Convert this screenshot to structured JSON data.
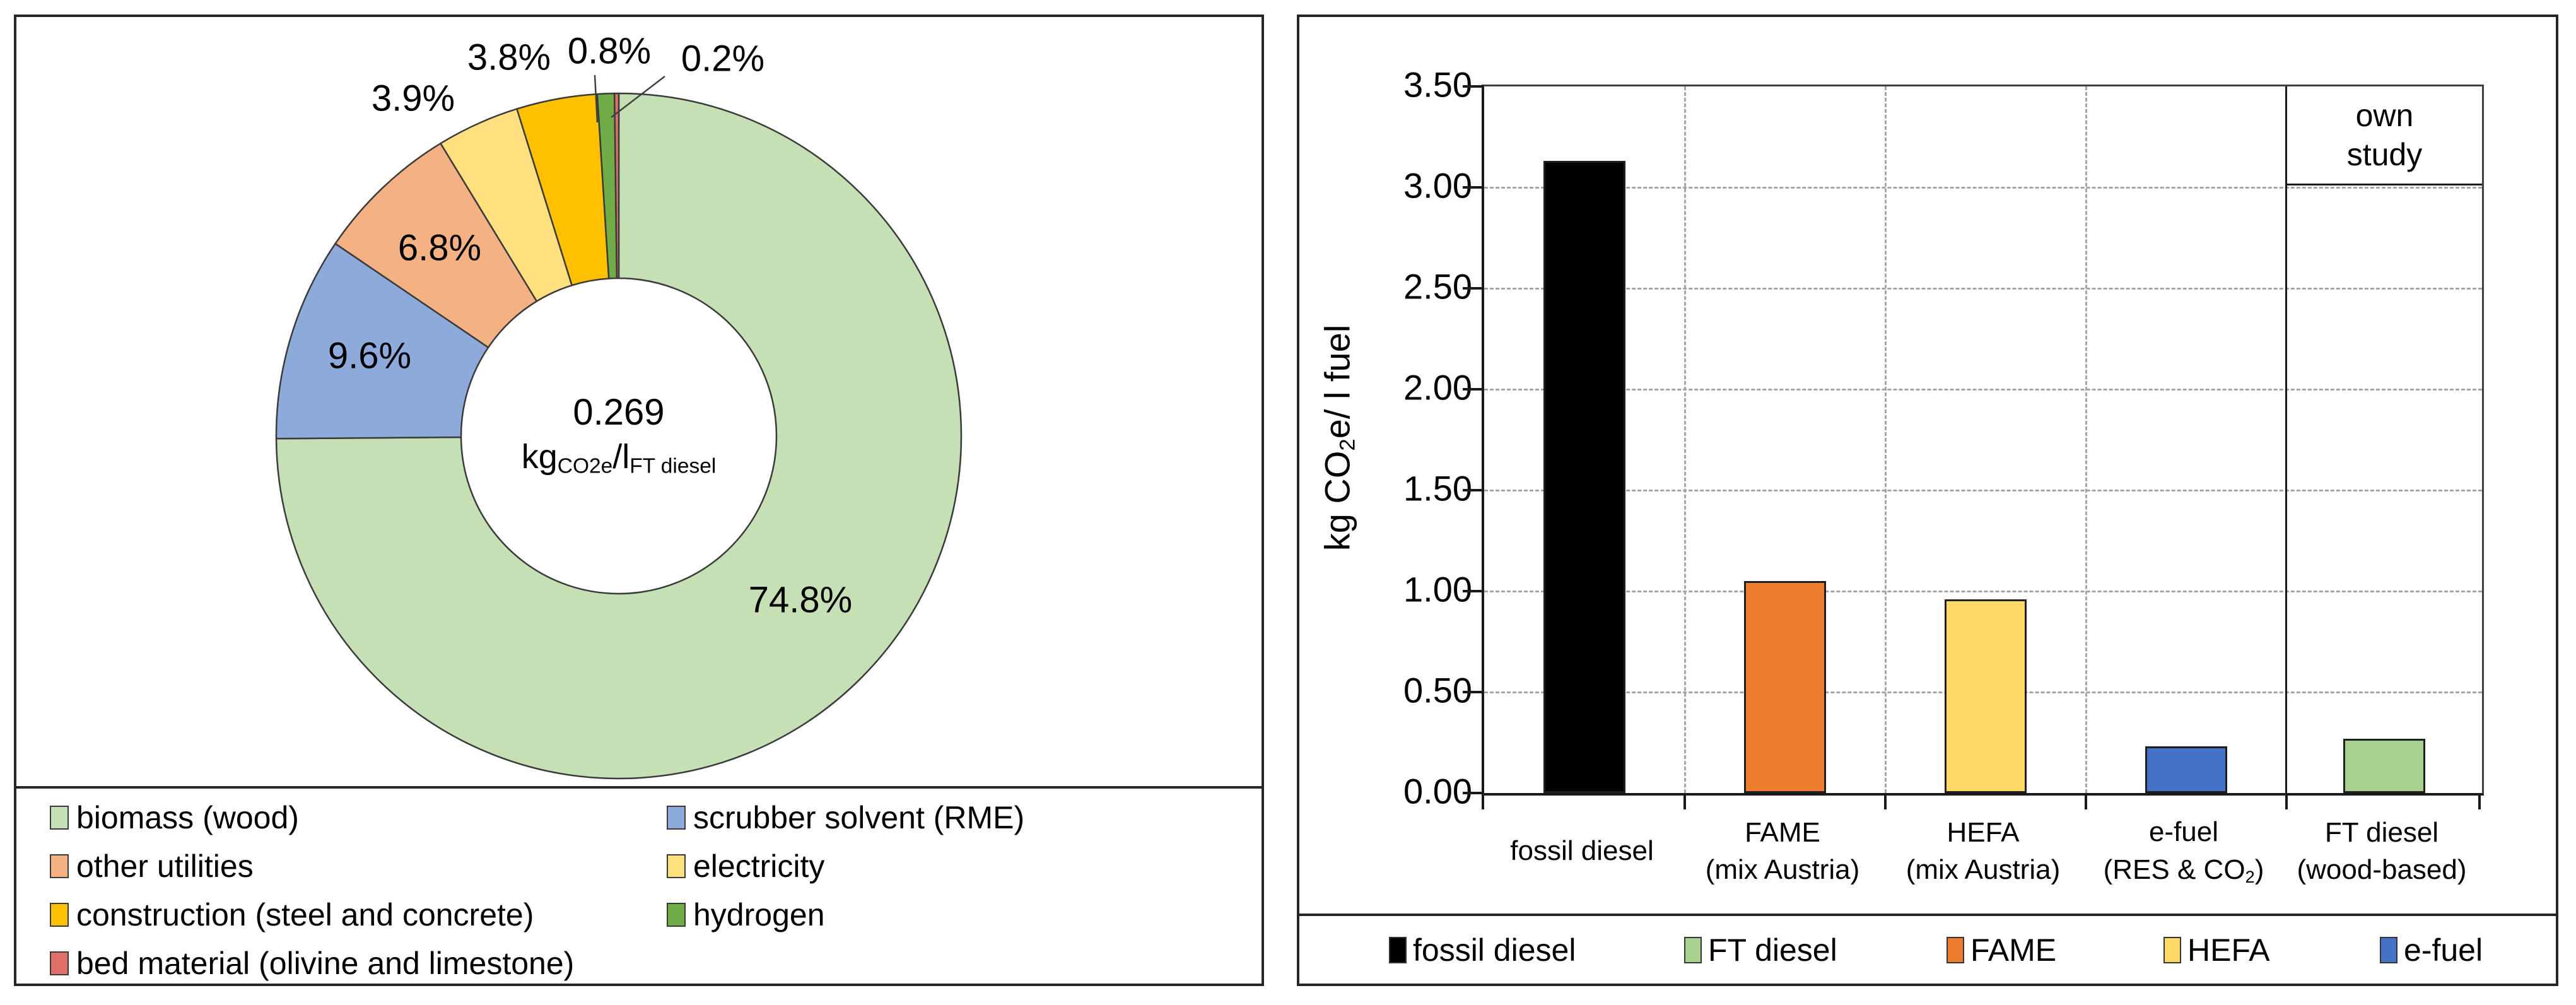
{
  "left_chart": {
    "center": {
      "value": "0.269",
      "unit_main": "kg",
      "unit_kg_sub": "CO2e",
      "unit_mid": "/l",
      "unit_l_sub": "FT diesel"
    },
    "slices": [
      {
        "name": "biomass (wood)",
        "pct": 74.8,
        "label": "74.8%",
        "color": "#C5E0B4"
      },
      {
        "name": "scrubber solvent (RME)",
        "pct": 9.6,
        "label": "9.6%",
        "color": "#8EAADB"
      },
      {
        "name": "other utilities",
        "pct": 6.8,
        "label": "6.8%",
        "color": "#F4B183"
      },
      {
        "name": "electricity",
        "pct": 3.9,
        "label": "3.9%",
        "color": "#FFDF7E"
      },
      {
        "name": "construction (steel and concrete)",
        "pct": 3.8,
        "label": "3.8%",
        "color": "#FFC000"
      },
      {
        "name": "hydrogen",
        "pct": 0.8,
        "label": "0.8%",
        "color": "#70AD47"
      },
      {
        "name": "bed material (olivine and limestone)",
        "pct": 0.2,
        "label": "0.2%",
        "color": "#E07069"
      }
    ],
    "legend_col1": [
      {
        "label": "biomass (wood)",
        "color": "#C5E0B4"
      },
      {
        "label": "other utilities",
        "color": "#F4B183"
      },
      {
        "label": "construction (steel and concrete)",
        "color": "#FFC000"
      },
      {
        "label": "bed material (olivine and limestone)",
        "color": "#E07069"
      }
    ],
    "legend_col2": [
      {
        "label": "scrubber solvent (RME)",
        "color": "#8EAADB"
      },
      {
        "label": "electricity",
        "color": "#FFDF7E"
      },
      {
        "label": "hydrogen",
        "color": "#70AD47"
      }
    ]
  },
  "right_chart": {
    "y_ticks": [
      "3.50",
      "3.00",
      "2.50",
      "2.00",
      "1.50",
      "1.00",
      "0.50",
      "0.00"
    ],
    "ylabel": {
      "pre": "kg CO",
      "sub": "2",
      "post": "e/ l fuel"
    },
    "own_study": {
      "line1": "own",
      "line2": "study"
    },
    "categories": [
      {
        "line1": "fossil diesel",
        "line2_pre": "",
        "line2_sub": "",
        "line2_post": "",
        "value": 3.13,
        "color": "#000000"
      },
      {
        "line1": "FAME",
        "line2_pre": "(mix Austria)",
        "line2_sub": "",
        "line2_post": "",
        "value": 1.05,
        "color": "#ED7D31"
      },
      {
        "line1": "HEFA",
        "line2_pre": "(mix Austria)",
        "line2_sub": "",
        "line2_post": "",
        "value": 0.96,
        "color": "#FFD966"
      },
      {
        "line1": "e-fuel",
        "line2_pre": "(RES & CO",
        "line2_sub": "2",
        "line2_post": ")",
        "value": 0.23,
        "color": "#4472C4"
      },
      {
        "line1": "FT diesel",
        "line2_pre": "(wood-based)",
        "line2_sub": "",
        "line2_post": "",
        "value": 0.27,
        "color": "#A9D18E"
      }
    ],
    "legend": [
      {
        "label": "fossil diesel",
        "color": "#000000"
      },
      {
        "label": "FT diesel",
        "color": "#A9D18E"
      },
      {
        "label": "FAME",
        "color": "#ED7D31"
      },
      {
        "label": "HEFA",
        "color": "#FFD966"
      },
      {
        "label": "e-fuel",
        "color": "#4472C4"
      }
    ]
  },
  "chart_data": [
    {
      "type": "pie",
      "donut": true,
      "labels": [
        "biomass (wood)",
        "scrubber solvent (RME)",
        "other utilities",
        "electricity",
        "construction (steel and concrete)",
        "hydrogen",
        "bed material (olivine and limestone)"
      ],
      "values": [
        74.8,
        9.6,
        6.8,
        3.9,
        3.8,
        0.8,
        0.2
      ],
      "value_unit": "%",
      "center_label": "0.269 kg CO2e / l FT diesel",
      "legend_position": "bottom"
    },
    {
      "type": "bar",
      "categories": [
        "fossil diesel",
        "FAME (mix Austria)",
        "HEFA (mix Austria)",
        "e-fuel (RES & CO2)",
        "FT diesel (wood-based)"
      ],
      "values": [
        3.13,
        1.05,
        0.96,
        0.23,
        0.27
      ],
      "title": "",
      "xlabel": "",
      "ylabel": "kg CO2e/ l fuel",
      "ylim": [
        0,
        3.5
      ],
      "ytick_step": 0.5,
      "grid": true,
      "annotation": "own study (applies to FT diesel wood-based column)",
      "legend_position": "bottom"
    }
  ]
}
